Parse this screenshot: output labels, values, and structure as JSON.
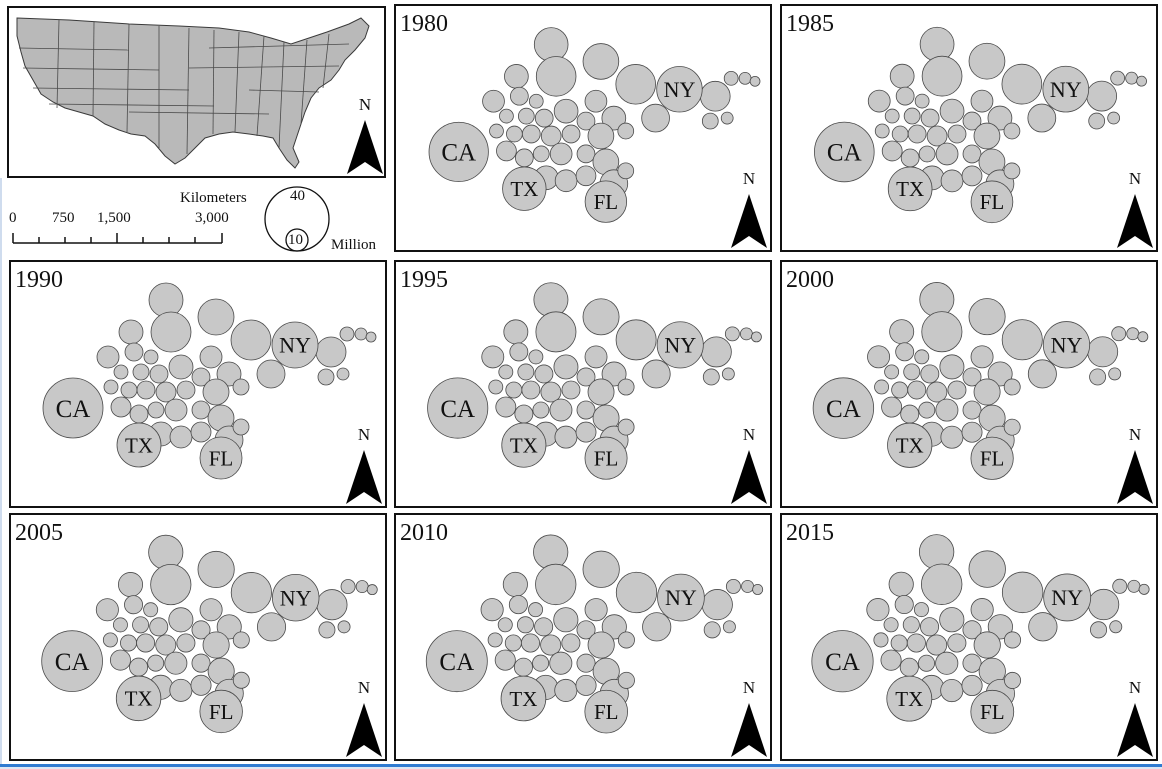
{
  "overview_map": {
    "north_label": "N"
  },
  "scale_bar": {
    "title": "Kilometers",
    "ticks": [
      "0",
      "750",
      "1,500",
      "3,000"
    ]
  },
  "circle_legend": {
    "values": [
      "40",
      "10"
    ],
    "unit": "Million"
  },
  "state_labels": {
    "CA": "CA",
    "TX": "TX",
    "FL": "FL",
    "NY": "NY"
  },
  "panels": [
    {
      "year": "1980",
      "north_label": "N",
      "scale": 0.93
    },
    {
      "year": "1985",
      "north_label": "N",
      "scale": 0.97
    },
    {
      "year": "1990",
      "north_label": "N",
      "scale": 1.0
    },
    {
      "year": "1995",
      "north_label": "N",
      "scale": 1.03
    },
    {
      "year": "2000",
      "north_label": "N",
      "scale": 1.06
    },
    {
      "year": "2005",
      "north_label": "N",
      "scale": 1.09
    },
    {
      "year": "2010",
      "north_label": "N",
      "scale": 1.12
    },
    {
      "year": "2015",
      "north_label": "N",
      "scale": 1.15
    }
  ],
  "colors": {
    "circle_fill": "#c8c8c8",
    "circle_stroke": "#4a4a4a",
    "map_fill": "#b9b9b9",
    "border": "#111111",
    "accent": "#2f7bd1"
  }
}
